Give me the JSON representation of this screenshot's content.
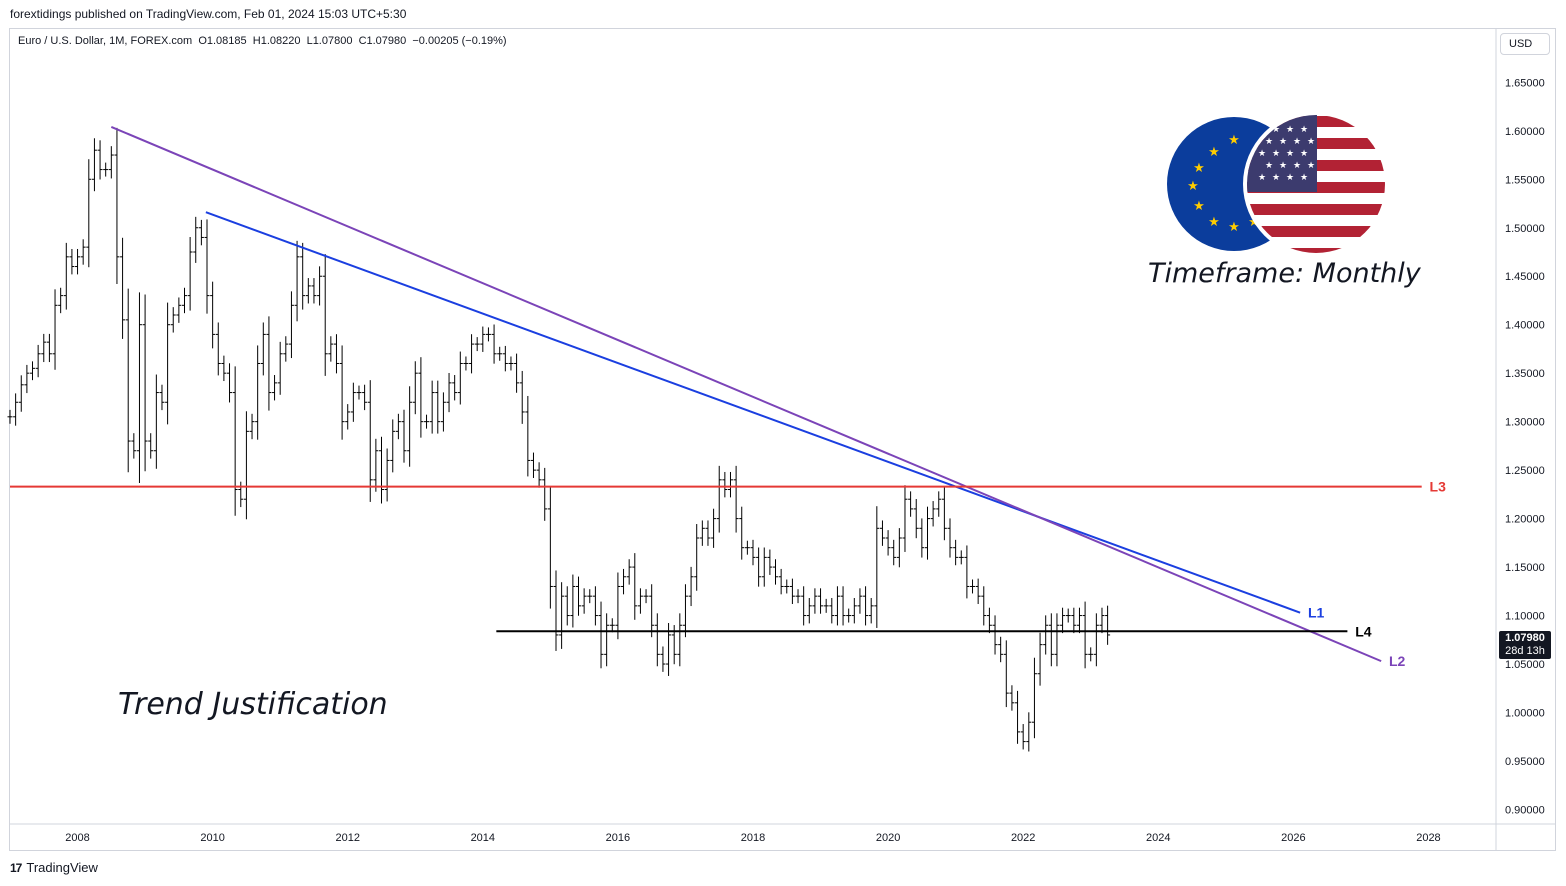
{
  "header": {
    "publisher": "forextidings published on TradingView.com, Feb 01, 2024 15:03 UTC+5:30",
    "legend": "Euro / U.S. Dollar, 1M, FOREX.com  O1.08185  H1.08220  L1.07800  C1.07980  −0.00205 (−0.19%)",
    "currency": "USD"
  },
  "footer": {
    "brand": "TradingView",
    "logo": "17"
  },
  "last_price": {
    "value": "1.07980",
    "countdown": "28d 13h",
    "color": "#131722"
  },
  "annotations": {
    "timeframe": "Timeframe: Monthly",
    "title_note": "Trend Justification"
  },
  "icons": {
    "eu_flag": "eu-flag-icon",
    "us_flag": "us-flag-icon"
  },
  "colors": {
    "L1": "#1b3fe0",
    "L2": "#7b44b8",
    "L3": "#e53935",
    "L4": "#000000",
    "bars": "#000000"
  },
  "chart_data": {
    "type": "ohlc",
    "symbol": "EURUSD",
    "interval": "1M",
    "x_ticks": [
      "2008",
      "2010",
      "2012",
      "2014",
      "2016",
      "2018",
      "2020",
      "2022",
      "2024",
      "2026",
      "2028"
    ],
    "y_ticks": [
      "1.65000",
      "1.60000",
      "1.55000",
      "1.50000",
      "1.45000",
      "1.40000",
      "1.35000",
      "1.30000",
      "1.25000",
      "1.20000",
      "1.15000",
      "1.10000",
      "1.05000",
      "1.00000",
      "0.95000",
      "0.90000"
    ],
    "ylim": [
      0.885,
      1.705
    ],
    "xlim": [
      2007.0,
      2029.0
    ],
    "bar_interval": 0.083333,
    "first_bar": 2007.0,
    "closes": [
      1.305,
      1.32,
      1.338,
      1.35,
      1.355,
      1.37,
      1.382,
      1.37,
      1.42,
      1.43,
      1.47,
      1.46,
      1.47,
      1.48,
      1.55,
      1.58,
      1.56,
      1.56,
      1.575,
      1.47,
      1.405,
      1.28,
      1.27,
      1.4,
      1.28,
      1.27,
      1.33,
      1.32,
      1.4,
      1.41,
      1.42,
      1.43,
      1.475,
      1.5,
      1.49,
      1.43,
      1.39,
      1.36,
      1.35,
      1.33,
      1.23,
      1.22,
      1.29,
      1.3,
      1.36,
      1.39,
      1.33,
      1.34,
      1.37,
      1.38,
      1.42,
      1.47,
      1.43,
      1.44,
      1.43,
      1.45,
      1.37,
      1.38,
      1.36,
      1.3,
      1.31,
      1.33,
      1.33,
      1.32,
      1.24,
      1.27,
      1.23,
      1.26,
      1.29,
      1.3,
      1.27,
      1.32,
      1.35,
      1.3,
      1.3,
      1.33,
      1.3,
      1.32,
      1.34,
      1.33,
      1.36,
      1.36,
      1.38,
      1.38,
      1.39,
      1.39,
      1.37,
      1.37,
      1.36,
      1.36,
      1.34,
      1.31,
      1.26,
      1.25,
      1.24,
      1.21,
      1.13,
      1.08,
      1.12,
      1.1,
      1.13,
      1.11,
      1.12,
      1.12,
      1.1,
      1.06,
      1.09,
      1.09,
      1.13,
      1.14,
      1.15,
      1.11,
      1.12,
      1.12,
      1.09,
      1.06,
      1.05,
      1.08,
      1.06,
      1.09,
      1.12,
      1.14,
      1.18,
      1.19,
      1.18,
      1.2,
      1.24,
      1.23,
      1.24,
      1.2,
      1.17,
      1.17,
      1.16,
      1.14,
      1.16,
      1.15,
      1.14,
      1.13,
      1.13,
      1.12,
      1.12,
      1.1,
      1.11,
      1.12,
      1.11,
      1.11,
      1.1,
      1.12,
      1.1,
      1.1,
      1.11,
      1.12,
      1.1,
      1.11,
      1.19,
      1.18,
      1.17,
      1.16,
      1.18,
      1.22,
      1.21,
      1.19,
      1.17,
      1.2,
      1.21,
      1.22,
      1.19,
      1.17,
      1.16,
      1.16,
      1.13,
      1.13,
      1.12,
      1.1,
      1.09,
      1.07,
      1.06,
      1.02,
      1.01,
      0.98,
      0.97,
      0.99,
      1.04,
      1.07,
      1.09,
      1.06,
      1.09,
      1.1,
      1.1,
      1.09,
      1.1,
      1.06,
      1.06,
      1.09,
      1.1,
      1.08
    ],
    "lines": [
      {
        "name": "L1",
        "from": [
          2009.9,
          1.516
        ],
        "to": [
          2026.1,
          1.103
        ]
      },
      {
        "name": "L2",
        "from": [
          2008.5,
          1.604
        ],
        "to": [
          2027.3,
          1.053
        ]
      },
      {
        "name": "L3",
        "from": [
          2007.0,
          1.233
        ],
        "to": [
          2027.9,
          1.233
        ]
      },
      {
        "name": "L4",
        "from": [
          2014.2,
          1.0838
        ],
        "to": [
          2026.8,
          1.0838
        ]
      }
    ],
    "line_labels": [
      "L1",
      "L2",
      "L3",
      "L4"
    ]
  }
}
